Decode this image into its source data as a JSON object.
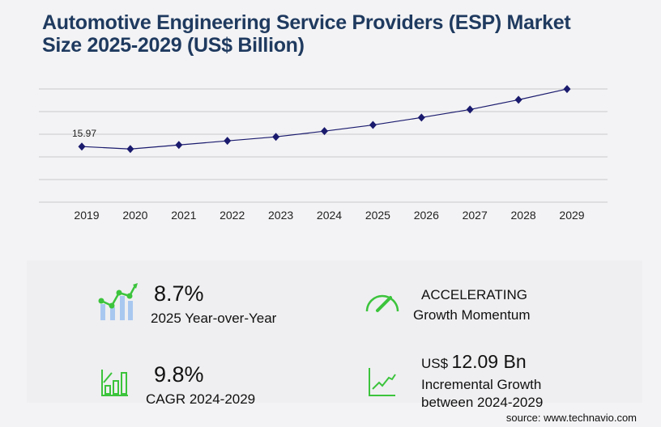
{
  "title": "Automotive Engineering Service Providers (ESP) Market Size 2025-2029 (US$ Billion)",
  "chart_data": {
    "type": "line",
    "title": "Automotive Engineering Service Providers (ESP) Market Size 2025-2029 (US$ Billion)",
    "categories": [
      "2019",
      "2020",
      "2021",
      "2022",
      "2023",
      "2024",
      "2025",
      "2026",
      "2027",
      "2028",
      "2029"
    ],
    "values": [
      15.97,
      15.27,
      16.43,
      17.6,
      18.76,
      20.39,
      22.16,
      24.3,
      26.6,
      29.4,
      32.48
    ],
    "data_labels": [
      "15.97",
      "",
      "",
      "",
      "",
      "",
      "",
      "",
      "",
      "",
      ""
    ],
    "ylim": [
      0,
      32.5
    ],
    "grid": true,
    "color": "#1a1a6e"
  },
  "kpis": {
    "yoy_value": "8.7%",
    "yoy_label": "2025 Year-over-Year",
    "momentum_value": "ACCELERATING",
    "momentum_label": "Growth Momentum",
    "cagr_value": "9.8%",
    "cagr_label": "CAGR 2024-2029",
    "incr_prefix": "US$",
    "incr_value": "12.09 Bn",
    "incr_label1": "Incremental Growth",
    "incr_label2": "between 2024-2029"
  },
  "source": "source: www.technavio.com",
  "colors": {
    "accent_green": "#3cc43c",
    "bar_blue": "#a9c8f0",
    "title": "#1f3a5f"
  }
}
